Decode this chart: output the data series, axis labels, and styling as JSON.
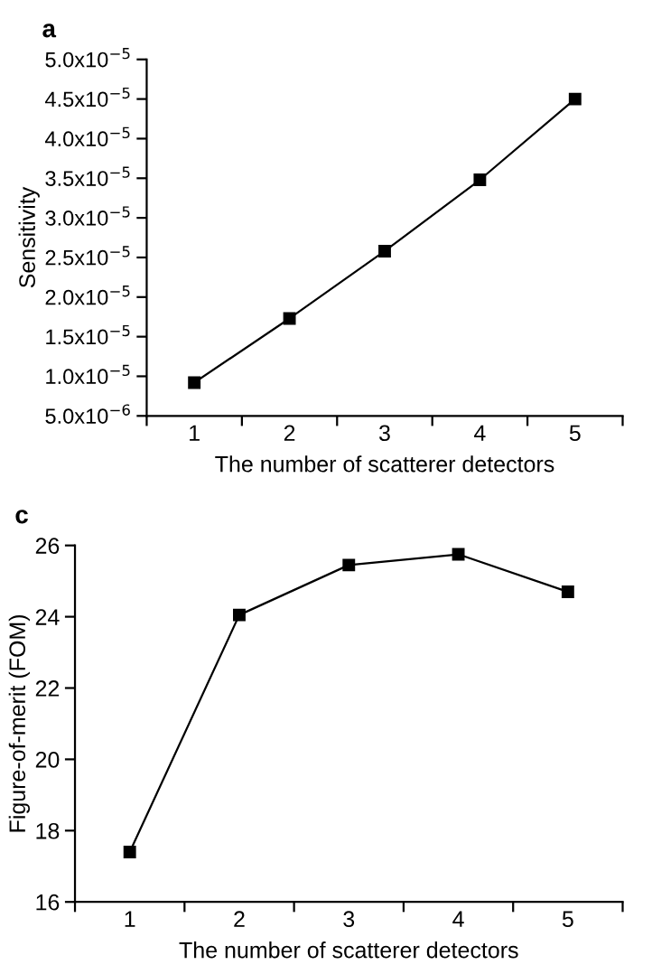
{
  "chart_data": [
    {
      "type": "line",
      "title": "a",
      "xlabel": "The number of scatterer detectors",
      "ylabel": "Sensitivity",
      "categories": [
        "1",
        "2",
        "3",
        "4",
        "5"
      ],
      "series": [
        {
          "color": "#000000",
          "values": [
            9.2e-06,
            1.73e-05,
            2.58e-05,
            3.48e-05,
            4.5e-05
          ]
        }
      ],
      "ylim": [
        5e-06,
        5e-05
      ],
      "yticks": [
        {
          "value": 5e-06,
          "label": "5.0x10$^{−6}$"
        },
        {
          "value": 1e-05,
          "label": "1.0x10$^{−5}$"
        },
        {
          "value": 1.5e-05,
          "label": "1.5x10$^{−5}$"
        },
        {
          "value": 2e-05,
          "label": "2.0x10$^{−5}$"
        },
        {
          "value": 2.5e-05,
          "label": "2.5x10$^{−5}$"
        },
        {
          "value": 3e-05,
          "label": "3.0x10$^{−5}$"
        },
        {
          "value": 3.5e-05,
          "label": "3.5x10$^{−5}$"
        },
        {
          "value": 4e-05,
          "label": "4.0x10$^{−5}$"
        },
        {
          "value": 4.5e-05,
          "label": "4.5x10$^{−5}$"
        },
        {
          "value": 5e-05,
          "label": "5.0x10$^{−5}$"
        }
      ],
      "marker": "square",
      "line_style": "solid",
      "grid": false,
      "legend": false
    },
    {
      "type": "line",
      "title": "c",
      "xlabel": "The number of scatterer detectors",
      "ylabel": "Figure-of-merit (FOM)",
      "categories": [
        "1",
        "2",
        "3",
        "4",
        "5"
      ],
      "series": [
        {
          "color": "#000000",
          "values": [
            17.4,
            24.05,
            25.45,
            25.75,
            24.7
          ]
        }
      ],
      "ylim": [
        16,
        26
      ],
      "yticks": [
        16,
        18,
        20,
        22,
        24,
        26
      ],
      "marker": "square",
      "line_style": "solid",
      "grid": false,
      "legend": false
    }
  ]
}
